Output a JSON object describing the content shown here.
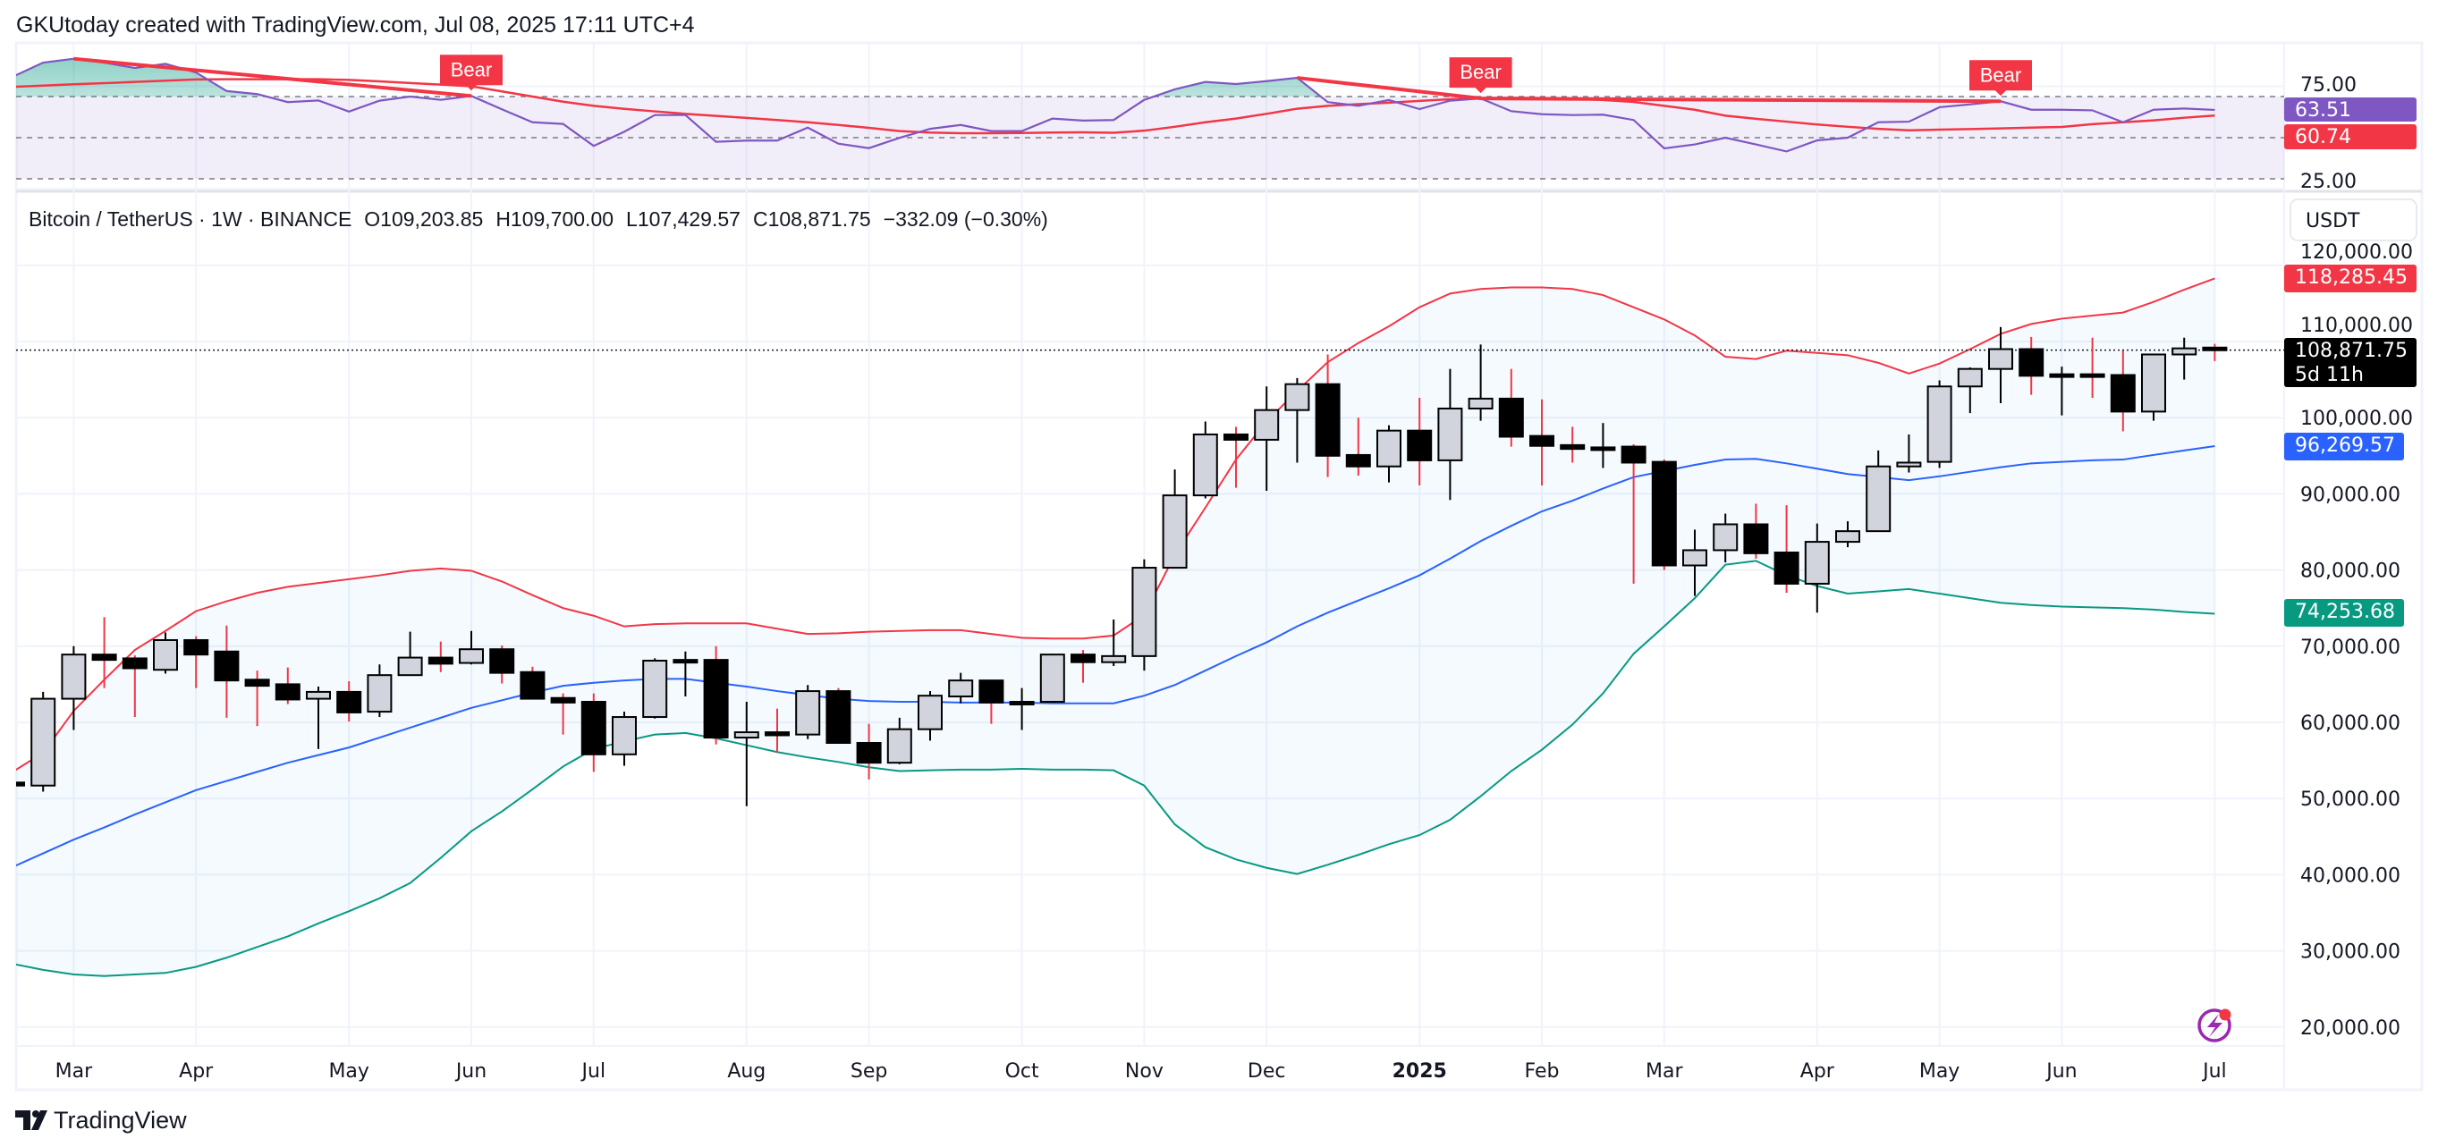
{
  "header": {
    "attribution": "GKUtoday created with TradingView.com, Jul 08, 2025 17:11 UTC+4"
  },
  "legend": {
    "symbol": "Bitcoin / TetherUS · 1W · BINANCE",
    "open": "O109,203.85",
    "high": "H109,700.00",
    "low": "L107,429.57",
    "close": "C108,871.75",
    "change": "−332.09 (−0.30%)"
  },
  "price_axis": {
    "currency": "USDT",
    "ticks": [
      "120,000.00",
      "110,000.00",
      "100,000.00",
      "90,000.00",
      "80,000.00",
      "70,000.00",
      "60,000.00",
      "50,000.00",
      "40,000.00",
      "30,000.00",
      "20,000.00"
    ],
    "tick_values": [
      120000,
      110000,
      100000,
      90000,
      80000,
      70000,
      60000,
      50000,
      40000,
      30000,
      20000
    ]
  },
  "rsi_axis": {
    "ticks": [
      "75.00",
      "25.00"
    ],
    "tick_values": [
      75,
      25
    ]
  },
  "badges": {
    "rsi": "63.51",
    "rsi_ma": "60.74",
    "bb_upper": "118,285.45",
    "last_price": "108,871.75",
    "countdown": "5d 11h",
    "bb_basis": "96,269.57",
    "bb_lower": "74,253.68"
  },
  "rsi_pane": {
    "bear_labels": [
      {
        "text": "Bear",
        "candle": 15,
        "from": 2
      },
      {
        "text": "Bear",
        "candle": 48,
        "from": 42
      },
      {
        "text": "Bear",
        "candle": 65,
        "from": 48
      }
    ]
  },
  "time_axis": {
    "labels": [
      "Mar",
      "Apr",
      "May",
      "Jun",
      "Jul",
      "Aug",
      "Sep",
      "Oct",
      "Nov",
      "Dec",
      "2025",
      "Feb",
      "Mar",
      "Apr",
      "May",
      "Jun",
      "Jul"
    ]
  },
  "footer": {
    "brand": "TradingView"
  },
  "colors": {
    "up_body": "#d1d4dc",
    "down_body": "#000000",
    "down_wick": "#f23645",
    "bb_upper": "#f23645",
    "bb_basis": "#2962ff",
    "bb_lower": "#089981",
    "rsi": "#7e57c2",
    "rsi_ma": "#f23645",
    "bear": "#f23645",
    "alert_icon": "#9c27b0"
  },
  "chart_data": {
    "type": "candlestick",
    "title": "Bitcoin / TetherUS · 1W · BINANCE",
    "ylim": [
      20000,
      120000
    ],
    "rsi_ylim": [
      25,
      75
    ],
    "rsi_levels": [
      70,
      50,
      30
    ],
    "candles": [
      [
        52100,
        52500,
        51500,
        51700
      ],
      [
        51700,
        64000,
        50900,
        63100
      ],
      [
        63100,
        70000,
        59000,
        68900
      ],
      [
        68900,
        73800,
        64500,
        68200
      ],
      [
        68400,
        68800,
        60700,
        67100
      ],
      [
        66900,
        71800,
        66400,
        70800
      ],
      [
        70800,
        71300,
        64500,
        68900
      ],
      [
        69300,
        72700,
        60600,
        65500
      ],
      [
        65600,
        66800,
        59500,
        64800
      ],
      [
        65000,
        67200,
        62400,
        63000
      ],
      [
        63100,
        64700,
        56500,
        64000
      ],
      [
        64000,
        65400,
        60100,
        61300
      ],
      [
        61400,
        67600,
        60700,
        66200
      ],
      [
        66200,
        71900,
        66100,
        68500
      ],
      [
        68500,
        70600,
        66600,
        67700
      ],
      [
        67800,
        72000,
        67600,
        69600
      ],
      [
        69600,
        70100,
        65100,
        66500
      ],
      [
        66600,
        67300,
        63000,
        63100
      ],
      [
        63200,
        63800,
        58400,
        62600
      ],
      [
        62700,
        63800,
        53500,
        55800
      ],
      [
        55800,
        61400,
        54300,
        60700
      ],
      [
        60700,
        68400,
        60500,
        68100
      ],
      [
        68200,
        69300,
        63400,
        68200
      ],
      [
        68200,
        70000,
        57100,
        58000
      ],
      [
        58000,
        62700,
        49000,
        58700
      ],
      [
        58700,
        61800,
        56000,
        58300
      ],
      [
        58400,
        64900,
        57800,
        64100
      ],
      [
        64100,
        64500,
        57200,
        57300
      ],
      [
        57300,
        59800,
        52500,
        54700
      ],
      [
        54700,
        60600,
        54500,
        59100
      ],
      [
        59100,
        64100,
        57600,
        63500
      ],
      [
        63400,
        66500,
        62500,
        65500
      ],
      [
        65500,
        65500,
        59800,
        62600
      ],
      [
        62700,
        64500,
        59000,
        62700
      ],
      [
        62700,
        69000,
        62700,
        68900
      ],
      [
        68900,
        69500,
        65200,
        67900
      ],
      [
        67900,
        73500,
        67400,
        68700
      ],
      [
        68700,
        81400,
        66800,
        80300
      ],
      [
        80300,
        93200,
        80300,
        89800
      ],
      [
        89800,
        99500,
        89400,
        97800
      ],
      [
        97800,
        98800,
        90800,
        97100
      ],
      [
        97100,
        104100,
        90400,
        101000
      ],
      [
        101000,
        105200,
        94100,
        104400
      ],
      [
        104400,
        108300,
        92200,
        95000
      ],
      [
        95100,
        100000,
        92400,
        93600
      ],
      [
        93600,
        99000,
        91500,
        98300
      ],
      [
        98300,
        102600,
        91100,
        94400
      ],
      [
        94400,
        106400,
        89200,
        101200
      ],
      [
        101200,
        109600,
        99600,
        102500
      ],
      [
        102500,
        106400,
        96200,
        97500
      ],
      [
        97600,
        102400,
        91100,
        96300
      ],
      [
        96400,
        98800,
        94100,
        95900
      ],
      [
        96100,
        99300,
        93400,
        96100
      ],
      [
        96200,
        96500,
        78200,
        94100
      ],
      [
        94200,
        94500,
        80000,
        80600
      ],
      [
        80600,
        85300,
        76600,
        82600
      ],
      [
        82600,
        87400,
        81000,
        86000
      ],
      [
        86000,
        88700,
        81500,
        82200
      ],
      [
        82300,
        88500,
        77000,
        78200
      ],
      [
        78200,
        86100,
        74400,
        83700
      ],
      [
        83700,
        86400,
        83000,
        85100
      ],
      [
        85100,
        95700,
        85000,
        93600
      ],
      [
        93600,
        97800,
        92800,
        94100
      ],
      [
        94200,
        104900,
        93400,
        104100
      ],
      [
        104100,
        106600,
        100600,
        106400
      ],
      [
        106400,
        111900,
        101900,
        109000
      ],
      [
        109000,
        110600,
        103000,
        105500
      ],
      [
        105700,
        106700,
        100300,
        105700
      ],
      [
        105700,
        110500,
        102600,
        105600
      ],
      [
        105600,
        108800,
        98200,
        100800
      ],
      [
        100800,
        108400,
        99600,
        108300
      ],
      [
        108300,
        110500,
        105000,
        109100
      ],
      [
        109203.85,
        109700,
        107429.57,
        108871.75
      ]
    ],
    "bb_upper": [
      53500,
      56000,
      61500,
      65600,
      69500,
      72000,
      74600,
      75900,
      77000,
      77800,
      78300,
      78800,
      79300,
      79900,
      80200,
      79900,
      78500,
      76700,
      75000,
      74000,
      72600,
      72900,
      73000,
      73000,
      73000,
      72300,
      71600,
      71700,
      71900,
      72000,
      72100,
      72100,
      71600,
      71100,
      71000,
      71000,
      71400,
      74100,
      82000,
      88200,
      94500,
      99500,
      103500,
      107300,
      109800,
      112000,
      114500,
      116300,
      116900,
      117100,
      117100,
      116900,
      116100,
      114500,
      112900,
      110800,
      108000,
      107700,
      108800,
      108500,
      108200,
      107200,
      105800,
      107100,
      109000,
      111000,
      112300,
      113000,
      113400,
      113800,
      115200,
      116800,
      118285.45
    ],
    "bb_basis": [
      41000,
      42800,
      44600,
      46200,
      47900,
      49500,
      51100,
      52300,
      53500,
      54700,
      55700,
      56700,
      58000,
      59300,
      60600,
      61900,
      62900,
      63900,
      64800,
      65200,
      65500,
      65700,
      65700,
      65200,
      64700,
      64100,
      63600,
      63100,
      62800,
      62700,
      62700,
      62600,
      62600,
      62600,
      62500,
      62500,
      62500,
      63500,
      64900,
      66800,
      68700,
      70500,
      72600,
      74400,
      76000,
      77600,
      79300,
      81500,
      83800,
      85800,
      87700,
      89100,
      90700,
      92200,
      93000,
      93800,
      94500,
      94600,
      94000,
      93300,
      92600,
      92200,
      91800,
      92300,
      92900,
      93500,
      94000,
      94200,
      94400,
      94500,
      95100,
      95700,
      96269.57
    ],
    "bb_lower": [
      28300,
      27500,
      26900,
      26700,
      26900,
      27100,
      27900,
      29100,
      30500,
      31900,
      33600,
      35200,
      36900,
      38900,
      42200,
      45700,
      48300,
      51200,
      54200,
      56500,
      57500,
      58400,
      58600,
      57900,
      57000,
      56100,
      55400,
      54800,
      54100,
      53600,
      53700,
      53800,
      53800,
      53900,
      53800,
      53800,
      53700,
      51700,
      46600,
      43600,
      42000,
      40900,
      40100,
      41300,
      42600,
      44000,
      45200,
      47200,
      50300,
      53600,
      56400,
      59700,
      63800,
      69000,
      72600,
      76300,
      80700,
      81200,
      79300,
      77900,
      76900,
      77200,
      77500,
      76900,
      76300,
      75700,
      75400,
      75200,
      75100,
      75000,
      74800,
      74500,
      74253.68
    ],
    "rsi": [
      79.6,
      86.5,
      88.4,
      86.5,
      83.9,
      85.9,
      81.7,
      72.7,
      71.2,
      67.3,
      68.1,
      62.7,
      68.0,
      70.0,
      68.4,
      70.3,
      63.8,
      57.5,
      56.7,
      46.0,
      52.9,
      61.0,
      61.0,
      48.0,
      48.6,
      48.6,
      54.9,
      47.1,
      44.9,
      49.9,
      54.3,
      56.2,
      53.2,
      53.2,
      59.3,
      58.3,
      58.6,
      68.4,
      73.5,
      77.1,
      76.1,
      77.5,
      79.1,
      67.3,
      65.5,
      68.3,
      63.9,
      68.0,
      69.1,
      62.9,
      61.4,
      61.0,
      61.2,
      58.6,
      44.8,
      46.7,
      50.0,
      46.7,
      43.3,
      48.7,
      50.0,
      57.5,
      57.8,
      64.8,
      66.2,
      67.7,
      63.6,
      63.6,
      63.3,
      57.5,
      63.6,
      64.2,
      63.51
    ],
    "rsi_ma": [
      74.7,
      75.3,
      76.0,
      76.5,
      77.1,
      77.7,
      78.3,
      78.4,
      78.4,
      78.4,
      78.4,
      78.1,
      77.4,
      76.6,
      75.8,
      75.0,
      72.5,
      70.0,
      67.5,
      65.5,
      64.0,
      62.8,
      61.6,
      60.6,
      59.6,
      58.6,
      57.5,
      56.2,
      54.8,
      53.2,
      52.5,
      52.2,
      52.2,
      52.3,
      52.5,
      52.6,
      52.4,
      53.4,
      55.3,
      57.5,
      59.3,
      61.6,
      64.1,
      65.5,
      66.3,
      67.0,
      67.9,
      68.7,
      69.1,
      69.4,
      69.3,
      69.1,
      68.3,
      67.4,
      65.5,
      63.6,
      60.7,
      59.2,
      57.8,
      56.4,
      55.3,
      54.3,
      53.6,
      53.9,
      54.2,
      54.5,
      54.9,
      55.2,
      56.6,
      57.5,
      58.4,
      59.7,
      60.74
    ]
  }
}
